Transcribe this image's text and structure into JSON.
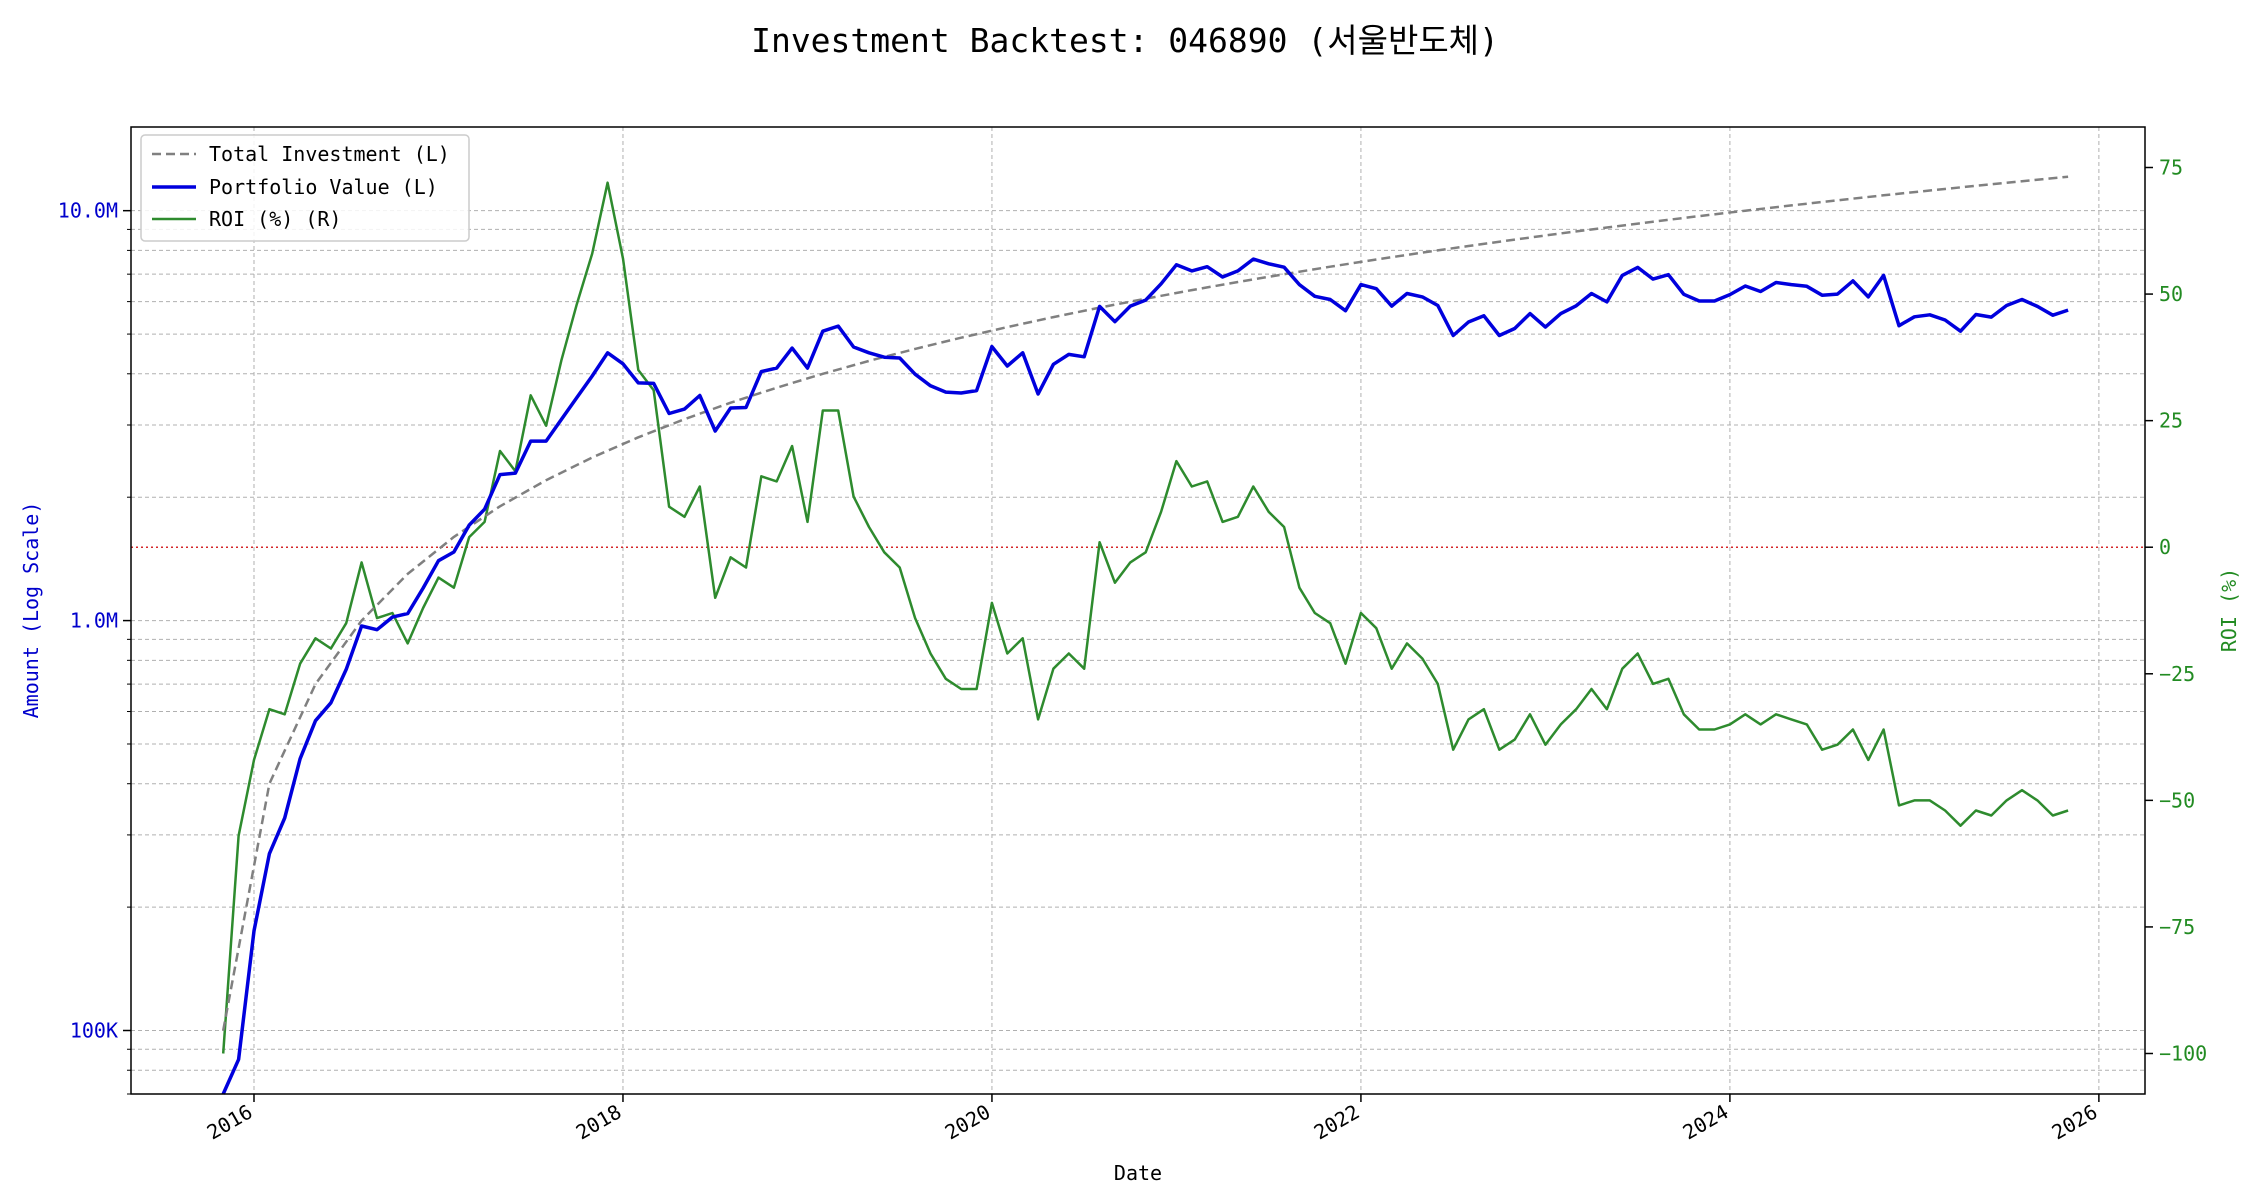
{
  "title": "Investment Backtest: 046890 (서울반도체)",
  "colors": {
    "portfolio": "#0000dd",
    "investment": "#808080",
    "roi": "#2e8b2e",
    "zero_line": "#d62728",
    "left_axis": "#0000cc",
    "right_axis": "#228b22"
  },
  "chart_data": {
    "type": "line",
    "title": "Investment Backtest: 046890 (서울반도체)",
    "xlabel": "Date",
    "ylabel_left": "Amount (Log Scale)",
    "ylabel_right": "ROI (%)",
    "y_left_scale": "log",
    "y_left_lim": [
      70000,
      16000000
    ],
    "y_right_lim": [
      -108,
      83
    ],
    "x_lim": [
      "2015-05-01",
      "2026-04-01"
    ],
    "grid": true,
    "legend_position": "upper left",
    "x_ticks": [
      "2016",
      "2018",
      "2020",
      "2022",
      "2024",
      "2026"
    ],
    "y_left_ticks": [
      "100K",
      "1.0M",
      "10.0M"
    ],
    "y_right_ticks": [
      "75",
      "50",
      "25",
      "0",
      "−25",
      "−50",
      "−75",
      "−100"
    ],
    "legend": [
      "Total Investment (L)",
      "Portfolio Value (L)",
      "ROI (%) (R)"
    ],
    "series": [
      {
        "name": "Total Investment (L)",
        "axis": "left",
        "style": "dashed",
        "x": [
          "2015-11",
          "2016-02",
          "2016-05",
          "2016-08",
          "2016-11",
          "2017-02",
          "2017-05",
          "2017-08",
          "2017-11",
          "2018-02",
          "2018-05",
          "2018-08",
          "2018-11",
          "2019-02",
          "2019-05",
          "2019-08",
          "2019-11",
          "2020-02",
          "2020-05",
          "2020-08",
          "2020-11",
          "2021-02",
          "2021-05",
          "2021-08",
          "2021-11",
          "2022-02",
          "2022-05",
          "2022-08",
          "2022-11",
          "2023-02",
          "2023-05",
          "2023-08",
          "2023-11",
          "2024-02",
          "2024-05",
          "2024-08",
          "2024-11",
          "2025-02",
          "2025-05",
          "2025-08",
          "2025-11"
        ],
        "values": [
          100000,
          400000,
          700000,
          1000000,
          1300000,
          1600000,
          1900000,
          2200000,
          2500000,
          2800000,
          3100000,
          3400000,
          3700000,
          4000000,
          4300000,
          4600000,
          4900000,
          5200000,
          5500000,
          5800000,
          6100000,
          6400000,
          6700000,
          7000000,
          7300000,
          7600000,
          7900000,
          8200000,
          8500000,
          8800000,
          9100000,
          9400000,
          9700000,
          10000000,
          10300000,
          10600000,
          10900000,
          11200000,
          11500000,
          11800000,
          12100000
        ]
      },
      {
        "name": "Portfolio Value (L)",
        "axis": "left",
        "style": "solid",
        "x": [
          "2015-11",
          "2015-12",
          "2016-01",
          "2016-02",
          "2016-03",
          "2016-04",
          "2016-05",
          "2016-06",
          "2016-07",
          "2016-08",
          "2016-09",
          "2016-10",
          "2016-11",
          "2016-12",
          "2017-01",
          "2017-02",
          "2017-03",
          "2017-04",
          "2017-05",
          "2017-06",
          "2017-07",
          "2017-08",
          "2017-09",
          "2017-10",
          "2017-11",
          "2017-12",
          "2018-01",
          "2018-02",
          "2018-03",
          "2018-04",
          "2018-05",
          "2018-06",
          "2018-07",
          "2018-08",
          "2018-09",
          "2018-10",
          "2018-11",
          "2018-12",
          "2019-01",
          "2019-02",
          "2019-03",
          "2019-04",
          "2019-05",
          "2019-06",
          "2019-07",
          "2019-08",
          "2019-09",
          "2019-10",
          "2019-11",
          "2019-12",
          "2020-01",
          "2020-02",
          "2020-03",
          "2020-04",
          "2020-05",
          "2020-06",
          "2020-07",
          "2020-08",
          "2020-09",
          "2020-10",
          "2020-11",
          "2020-12",
          "2021-01",
          "2021-02",
          "2021-03",
          "2021-04",
          "2021-05",
          "2021-06",
          "2021-07",
          "2021-08",
          "2021-09",
          "2021-10",
          "2021-11",
          "2021-12",
          "2022-01",
          "2022-02",
          "2022-03",
          "2022-04",
          "2022-05",
          "2022-06",
          "2022-07",
          "2022-08",
          "2022-09",
          "2022-10",
          "2022-11",
          "2022-12",
          "2023-01",
          "2023-02",
          "2023-03",
          "2023-04",
          "2023-05",
          "2023-06",
          "2023-07",
          "2023-08",
          "2023-09",
          "2023-10",
          "2023-11",
          "2023-12",
          "2024-01",
          "2024-02",
          "2024-03",
          "2024-04",
          "2024-05",
          "2024-06",
          "2024-07",
          "2024-08",
          "2024-09",
          "2024-10",
          "2024-11",
          "2024-12",
          "2025-01",
          "2025-02",
          "2025-03",
          "2025-04",
          "2025-05",
          "2025-06",
          "2025-07",
          "2025-08",
          "2025-09",
          "2025-10",
          "2025-11"
        ],
        "values": [
          30000,
          85000,
          175000,
          270000,
          330000,
          460000,
          570000,
          630000,
          760000,
          970000,
          950000,
          1020000,
          1040000,
          1200000,
          1400000,
          1470000,
          1710000,
          1870000,
          2270000,
          2290000,
          2740000,
          2740000,
          3100000,
          3500000,
          3950000,
          4500000,
          4230000,
          3800000,
          3790000,
          3200000,
          3280000,
          3540000,
          2900000,
          3300000,
          3310000,
          4050000,
          4130000,
          4620000,
          4130000,
          5080000,
          5230000,
          4650000,
          4500000,
          4390000,
          4370000,
          3990000,
          3740000,
          3610000,
          3590000,
          3640000,
          4660000,
          4180000,
          4500000,
          3570000,
          4220000,
          4460000,
          4400000,
          5840000,
          5360000,
          5850000,
          6050000,
          6630000,
          7380000,
          7130000,
          7300000,
          6890000,
          7130000,
          7620000,
          7420000,
          7280000,
          6600000,
          6180000,
          6070000,
          5700000,
          6600000,
          6450000,
          5850000,
          6280000,
          6160000,
          5870000,
          4960000,
          5350000,
          5540000,
          4960000,
          5160000,
          5610000,
          5200000,
          5610000,
          5860000,
          6280000,
          5990000,
          6950000,
          7270000,
          6810000,
          6980000,
          6250000,
          6020000,
          6020000,
          6240000,
          6550000,
          6350000,
          6680000,
          6600000,
          6540000,
          6220000,
          6260000,
          6740000,
          6160000,
          6950000,
          5240000,
          5510000,
          5570000,
          5410000,
          5080000,
          5580000,
          5500000,
          5870000,
          6070000,
          5840000,
          5560000,
          5720000
        ]
      },
      {
        "name": "ROI (%) (R)",
        "axis": "right",
        "style": "solid",
        "x": [
          "2015-11",
          "2015-12",
          "2016-01",
          "2016-02",
          "2016-03",
          "2016-04",
          "2016-05",
          "2016-06",
          "2016-07",
          "2016-08",
          "2016-09",
          "2016-10",
          "2016-11",
          "2016-12",
          "2017-01",
          "2017-02",
          "2017-03",
          "2017-04",
          "2017-05",
          "2017-06",
          "2017-07",
          "2017-08",
          "2017-09",
          "2017-10",
          "2017-11",
          "2017-12",
          "2018-01",
          "2018-02",
          "2018-03",
          "2018-04",
          "2018-05",
          "2018-06",
          "2018-07",
          "2018-08",
          "2018-09",
          "2018-10",
          "2018-11",
          "2018-12",
          "2019-01",
          "2019-02",
          "2019-03",
          "2019-04",
          "2019-05",
          "2019-06",
          "2019-07",
          "2019-08",
          "2019-09",
          "2019-10",
          "2019-11",
          "2019-12",
          "2020-01",
          "2020-02",
          "2020-03",
          "2020-04",
          "2020-05",
          "2020-06",
          "2020-07",
          "2020-08",
          "2020-09",
          "2020-10",
          "2020-11",
          "2020-12",
          "2021-01",
          "2021-02",
          "2021-03",
          "2021-04",
          "2021-05",
          "2021-06",
          "2021-07",
          "2021-08",
          "2021-09",
          "2021-10",
          "2021-11",
          "2021-12",
          "2022-01",
          "2022-02",
          "2022-03",
          "2022-04",
          "2022-05",
          "2022-06",
          "2022-07",
          "2022-08",
          "2022-09",
          "2022-10",
          "2022-11",
          "2022-12",
          "2023-01",
          "2023-02",
          "2023-03",
          "2023-04",
          "2023-05",
          "2023-06",
          "2023-07",
          "2023-08",
          "2023-09",
          "2023-10",
          "2023-11",
          "2023-12",
          "2024-01",
          "2024-02",
          "2024-03",
          "2024-04",
          "2024-05",
          "2024-06",
          "2024-07",
          "2024-08",
          "2024-09",
          "2024-10",
          "2024-11",
          "2024-12",
          "2025-01",
          "2025-02",
          "2025-03",
          "2025-04",
          "2025-05",
          "2025-06",
          "2025-07",
          "2025-08",
          "2025-09",
          "2025-10",
          "2025-11"
        ],
        "values": [
          -100,
          -57,
          -42,
          -32,
          -33,
          -23,
          -18,
          -20,
          -15,
          -3,
          -14,
          -13,
          -19,
          -12,
          -6,
          -8,
          2,
          5,
          19,
          15,
          30,
          24,
          37,
          48,
          58,
          72,
          57,
          35,
          31,
          8,
          6,
          12,
          -10,
          -2,
          -4,
          14,
          13,
          20,
          5,
          27,
          27,
          10,
          4,
          -1,
          -4,
          -14,
          -21,
          -26,
          -28,
          -28,
          -11,
          -21,
          -18,
          -34,
          -24,
          -21,
          -24,
          1,
          -7,
          -3,
          -1,
          7,
          17,
          12,
          13,
          5,
          6,
          12,
          7,
          4,
          -8,
          -13,
          -15,
          -23,
          -13,
          -16,
          -24,
          -19,
          -22,
          -27,
          -40,
          -34,
          -32,
          -40,
          -38,
          -33,
          -39,
          -35,
          -32,
          -28,
          -32,
          -24,
          -21,
          -27,
          -26,
          -33,
          -36,
          -36,
          -35,
          -33,
          -35,
          -33,
          -34,
          -35,
          -40,
          -39,
          -36,
          -42,
          -36,
          -51,
          -50,
          -50,
          -52,
          -55,
          -52,
          -53,
          -50,
          -48,
          -50,
          -53,
          -52
        ]
      }
    ]
  }
}
